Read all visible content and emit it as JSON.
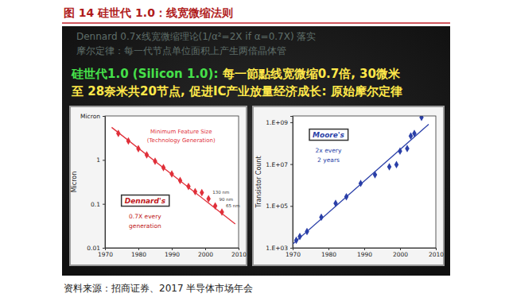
{
  "title": "图 14 硅世代 1.0：线宽微缩法则",
  "slide_notes": [
    "Dennard 0.7x线宽微缩理论(1/α²=2X if α=0.7X) 落实",
    "摩尔定律：每一代节点单位面积上产生两倍晶体管"
  ],
  "slide_heading": "硅世代1.0 (Silicon 1.0):",
  "slide_text": [
    "每一節點线宽微缩0.7倍, 30微米",
    "至 28奈米共20节点, 促进IC产业放量经济成长: 原始摩尔定律"
  ],
  "source": "资料来源：招商证券、2017 半导体市场年会",
  "chart_data": [
    {
      "type": "scatter",
      "log": "y",
      "grid": false,
      "ylabel": "Micron",
      "xlim": [
        1970,
        2010
      ],
      "xticks": [
        1970,
        1980,
        1990,
        2000,
        2010
      ],
      "ylim": [
        0.01,
        10
      ],
      "yticks": [
        0.01,
        0.1,
        1,
        {
          "value": 10,
          "label": "Micron"
        }
      ],
      "annotations": [
        "Minimum Feature Size",
        "(Technology Generation)",
        "Dennard's",
        "0.7X every",
        "generation",
        "130 nm",
        "90 nm",
        "65 nm"
      ],
      "series": [
        {
          "type": "scatter",
          "marker": "diamond",
          "color": "#e0303a",
          "x": [
            1974,
            1977,
            1980,
            1982.5,
            1985,
            1987.5,
            1990,
            1992.5,
            1995,
            1997,
            1999,
            2001,
            2003,
            2005
          ],
          "values": [
            4,
            2.7,
            1.8,
            1.3,
            0.93,
            0.67,
            0.48,
            0.34,
            0.25,
            0.19,
            0.18,
            0.13,
            0.09,
            0.065
          ]
        },
        {
          "type": "line",
          "line_style": "solid",
          "color": "#e0303a",
          "x": [
            1972,
            2009
          ],
          "values": [
            5.5,
            0.035
          ]
        }
      ]
    },
    {
      "type": "scatter",
      "log": "y",
      "grid": false,
      "ylabel": "Transistor Count",
      "xlim": [
        1970,
        2010
      ],
      "xticks": [
        1970,
        1980,
        1990,
        2000,
        2010
      ],
      "ylim": [
        1000,
        2000000000
      ],
      "yticks": [
        {
          "value": 1000,
          "label": "1.E+03"
        },
        {
          "value": 100000,
          "label": "1.E+05"
        },
        {
          "value": 10000000,
          "label": "1.E+07"
        },
        {
          "value": 1000000000,
          "label": "1.E+09"
        }
      ],
      "annotations": [
        "Moore's",
        "2x every",
        "2 years"
      ],
      "series": [
        {
          "type": "scatter",
          "marker": "diamond",
          "color": "#2a3fa8",
          "x": [
            1971,
            1972,
            1974,
            1978,
            1982,
            1985,
            1989,
            1993,
            1997,
            1999,
            2000,
            2002,
            2003,
            2004,
            2006
          ],
          "values": [
            2300,
            3500,
            6000,
            29000,
            134000,
            275000,
            1200000,
            3100000,
            7500000,
            9500000,
            42000000,
            55000000,
            220000000,
            290000000,
            1700000000
          ]
        },
        {
          "type": "line",
          "line_style": "solid",
          "color": "#2a3fa8",
          "x": [
            1970,
            2008
          ],
          "values": [
            1500,
            800000000
          ]
        }
      ]
    }
  ]
}
